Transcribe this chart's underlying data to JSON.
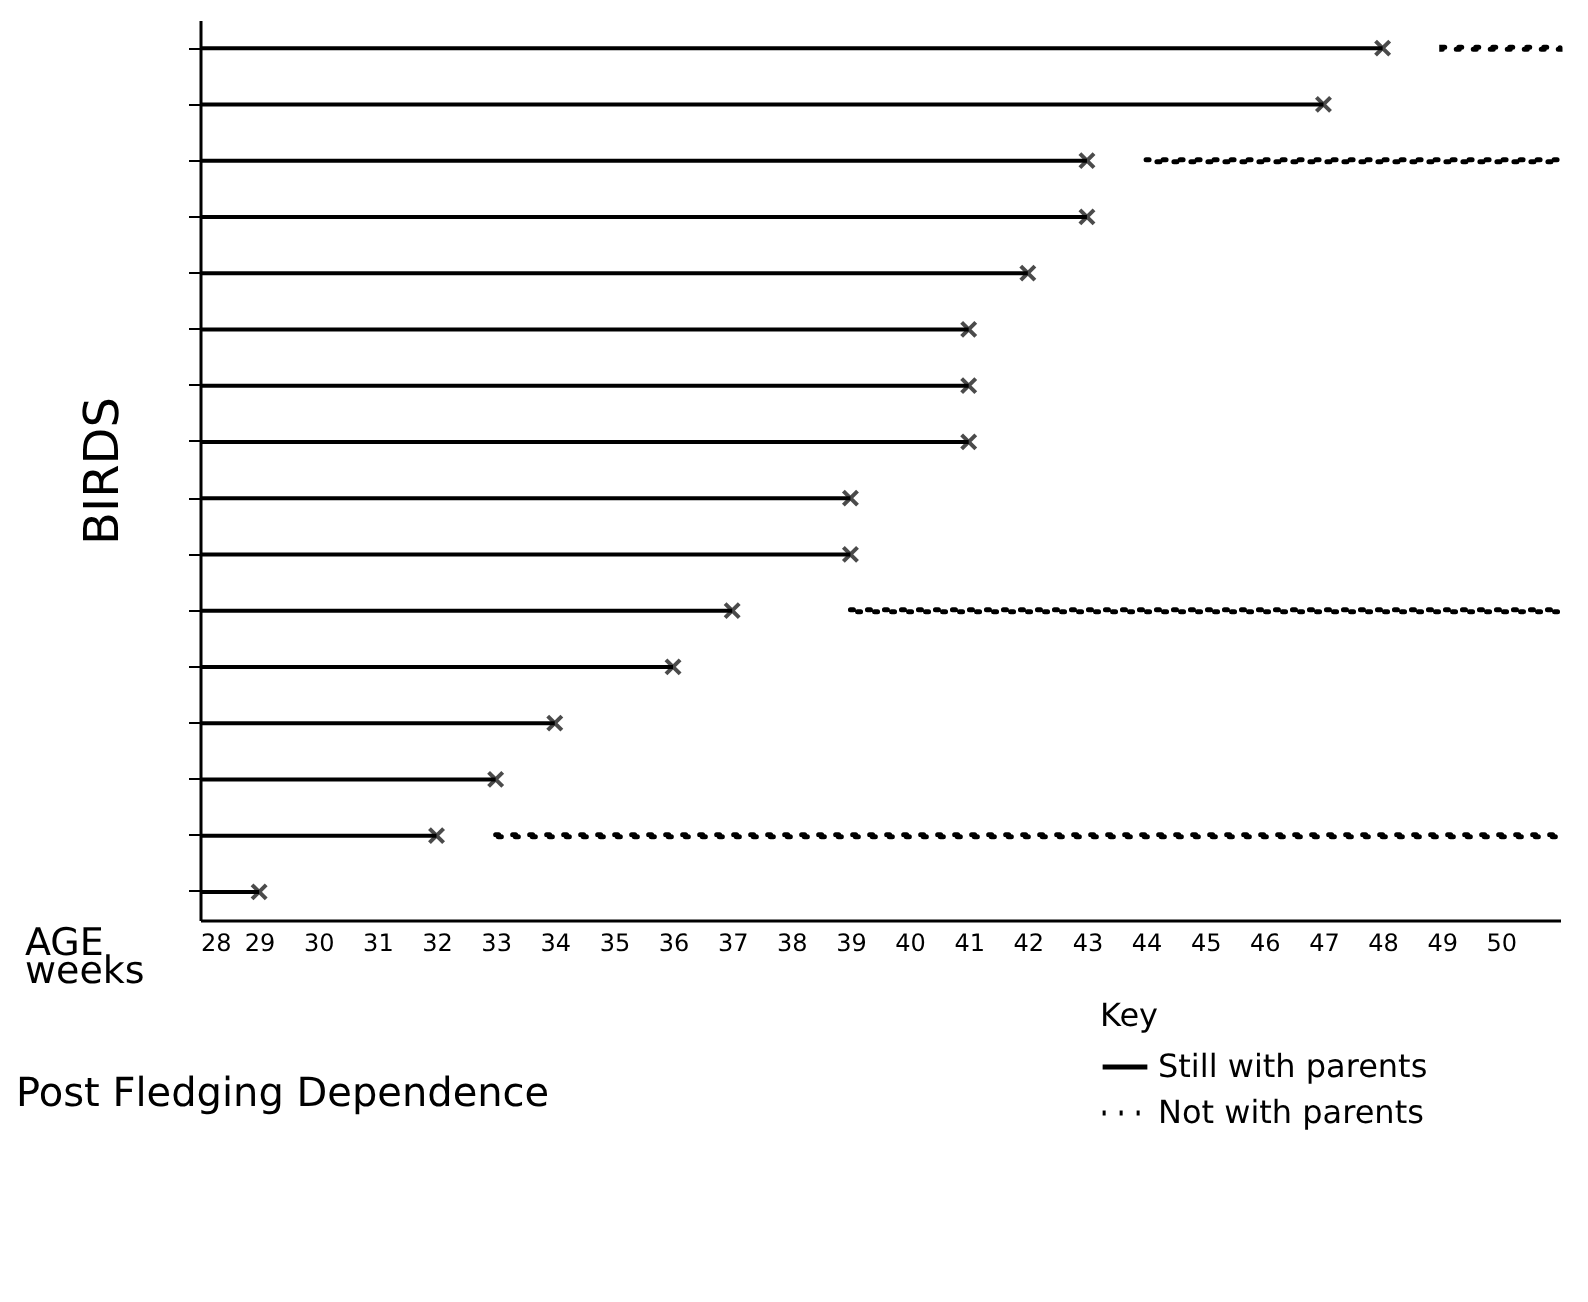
{
  "chart_data": {
    "type": "bar",
    "orientation": "horizontal",
    "title": "Post Fledging Dependence",
    "xlabel": "AGE\nweeks",
    "ylabel": "BIRDS",
    "legend_title": "Key",
    "legend": "bottom right",
    "tick_labels": "x",
    "grid": false,
    "categories": [
      null,
      null,
      null,
      null,
      null,
      null,
      null,
      null,
      null,
      null,
      null,
      null,
      null,
      null,
      null,
      null
    ],
    "xlim": [
      28,
      51
    ],
    "xticks": [
      28,
      29,
      30,
      31,
      32,
      33,
      34,
      35,
      36,
      37,
      38,
      39,
      40,
      41,
      42,
      43,
      44,
      45,
      46,
      47,
      48,
      49,
      50
    ],
    "series": [
      {
        "name": "Still with parents",
        "color": "#000000",
        "line_style": "solid",
        "base": [
          28,
          28,
          28,
          28,
          28,
          28,
          28,
          28,
          28,
          28,
          28,
          28,
          28,
          28,
          28,
          28
        ],
        "values": [
          20,
          19,
          15,
          15,
          14,
          13,
          13,
          13,
          11,
          11,
          9,
          8,
          6,
          5,
          4,
          1
        ]
      },
      {
        "type": "scatter",
        "color": "#000000",
        "marker": "cross",
        "values": [
          48,
          47,
          43,
          43,
          42,
          41,
          41,
          41,
          39,
          39,
          37,
          36,
          34,
          33,
          32,
          29
        ]
      },
      {
        "name": "Not with parents",
        "color": "#000000",
        "line_style": "dotted",
        "base": [
          49,
          null,
          44,
          null,
          null,
          null,
          null,
          null,
          null,
          null,
          39,
          null,
          null,
          null,
          33,
          null
        ],
        "values": [
          2,
          null,
          7,
          null,
          null,
          null,
          null,
          null,
          null,
          null,
          12,
          null,
          null,
          null,
          18,
          null
        ]
      }
    ]
  }
}
